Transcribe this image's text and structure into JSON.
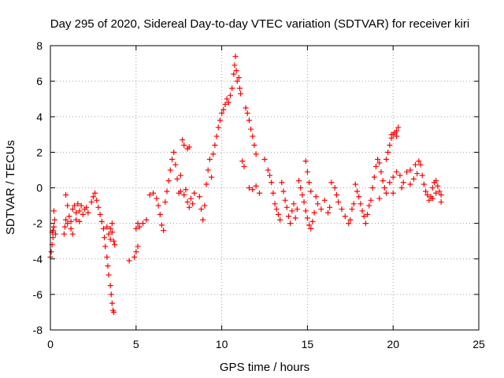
{
  "chart_data": {
    "type": "scatter",
    "title": "Day 295 of 2020, Sidereal Day-to-day VTEC variation (SDTVAR) for receiver kiri",
    "xlabel": "GPS time / hours",
    "ylabel": "SDTVAR / TECUs",
    "xlim": [
      0,
      25
    ],
    "ylim": [
      -8,
      8
    ],
    "xticks": [
      "0",
      "5",
      "10",
      "15",
      "20",
      "25"
    ],
    "yticks": [
      "-8",
      "-6",
      "-4",
      "-2",
      "0",
      "2",
      "4",
      "6",
      "8"
    ],
    "grid": true,
    "marker": "+",
    "color": "#ff0000",
    "series": [
      {
        "name": "SDTVAR",
        "points": [
          [
            0.0,
            -3.9
          ],
          [
            0.05,
            -3.6
          ],
          [
            0.1,
            -3.2
          ],
          [
            0.15,
            -2.8
          ],
          [
            0.1,
            -2.5
          ],
          [
            0.2,
            -2.2
          ],
          [
            0.25,
            -1.8
          ],
          [
            0.2,
            -1.3
          ],
          [
            0.3,
            -2.6
          ],
          [
            0.15,
            -2.4
          ],
          [
            0.8,
            -2.6
          ],
          [
            0.85,
            -2.2
          ],
          [
            0.9,
            -1.8
          ],
          [
            1.0,
            -2.0
          ],
          [
            1.1,
            -1.6
          ],
          [
            1.2,
            -1.9
          ],
          [
            1.3,
            -1.2
          ],
          [
            1.4,
            -1.0
          ],
          [
            1.5,
            -1.4
          ],
          [
            1.6,
            -0.9
          ],
          [
            1.7,
            -1.3
          ],
          [
            1.8,
            -1.0
          ],
          [
            1.9,
            -1.5
          ],
          [
            2.0,
            -1.2
          ],
          [
            2.1,
            -1.1
          ],
          [
            0.9,
            -0.4
          ],
          [
            1.0,
            -1.0
          ],
          [
            1.2,
            -2.3
          ],
          [
            1.3,
            -2.6
          ],
          [
            1.5,
            -1.8
          ],
          [
            1.7,
            -1.9
          ],
          [
            2.2,
            -1.4
          ],
          [
            2.4,
            -0.8
          ],
          [
            2.5,
            -0.5
          ],
          [
            2.6,
            -0.3
          ],
          [
            2.7,
            -0.7
          ],
          [
            2.8,
            -1.1
          ],
          [
            2.9,
            -1.5
          ],
          [
            3.0,
            -1.9
          ],
          [
            3.1,
            -2.3
          ],
          [
            3.15,
            -2.8
          ],
          [
            3.2,
            -3.3
          ],
          [
            3.3,
            -3.9
          ],
          [
            3.35,
            -4.4
          ],
          [
            3.4,
            -4.9
          ],
          [
            3.5,
            -5.5
          ],
          [
            3.55,
            -6.0
          ],
          [
            3.6,
            -6.5
          ],
          [
            3.65,
            -6.9
          ],
          [
            3.7,
            -7.0
          ],
          [
            3.3,
            -2.2
          ],
          [
            3.4,
            -2.6
          ],
          [
            3.5,
            -2.9
          ],
          [
            3.6,
            -2.5
          ],
          [
            3.7,
            -3.0
          ],
          [
            3.75,
            -3.2
          ],
          [
            3.6,
            -2.0
          ],
          [
            3.5,
            -2.3
          ],
          [
            4.6,
            -4.1
          ],
          [
            4.9,
            -3.9
          ],
          [
            5.0,
            -3.6
          ],
          [
            5.1,
            -3.3
          ],
          [
            5.0,
            -2.3
          ],
          [
            5.1,
            -2.0
          ],
          [
            5.2,
            -2.2
          ],
          [
            5.4,
            -2.0
          ],
          [
            5.6,
            -1.8
          ],
          [
            5.8,
            -0.4
          ],
          [
            6.0,
            -0.3
          ],
          [
            6.2,
            -0.6
          ],
          [
            6.3,
            -1.0
          ],
          [
            6.4,
            -1.5
          ],
          [
            6.5,
            -2.1
          ],
          [
            6.6,
            -2.4
          ],
          [
            6.7,
            -0.8
          ],
          [
            6.8,
            -0.2
          ],
          [
            6.9,
            0.4
          ],
          [
            7.0,
            1.0
          ],
          [
            7.1,
            1.6
          ],
          [
            7.2,
            2.0
          ],
          [
            7.3,
            1.3
          ],
          [
            7.4,
            0.5
          ],
          [
            7.5,
            -0.3
          ],
          [
            7.6,
            0.7
          ],
          [
            7.7,
            2.7
          ],
          [
            7.8,
            2.4
          ],
          [
            8.0,
            2.2
          ],
          [
            8.1,
            2.3
          ],
          [
            7.6,
            -0.2
          ],
          [
            7.8,
            -0.4
          ],
          [
            7.9,
            -0.1
          ],
          [
            8.0,
            -0.8
          ],
          [
            8.1,
            -1.1
          ],
          [
            8.2,
            -0.6
          ],
          [
            8.3,
            -0.9
          ],
          [
            8.4,
            -0.3
          ],
          [
            8.7,
            -0.5
          ],
          [
            8.8,
            -1.2
          ],
          [
            8.9,
            -1.8
          ],
          [
            9.0,
            -1.0
          ],
          [
            9.1,
            0.2
          ],
          [
            9.2,
            1.0
          ],
          [
            9.3,
            1.6
          ],
          [
            9.4,
            0.6
          ],
          [
            9.5,
            1.9
          ],
          [
            9.6,
            2.4
          ],
          [
            9.7,
            2.9
          ],
          [
            9.8,
            3.4
          ],
          [
            9.9,
            3.8
          ],
          [
            10.0,
            4.2
          ],
          [
            10.1,
            4.4
          ],
          [
            10.2,
            4.7
          ],
          [
            10.3,
            5.0
          ],
          [
            10.4,
            4.8
          ],
          [
            10.5,
            5.2
          ],
          [
            10.6,
            5.6
          ],
          [
            10.7,
            6.4
          ],
          [
            10.75,
            6.9
          ],
          [
            10.8,
            7.4
          ],
          [
            10.85,
            6.6
          ],
          [
            10.9,
            6.0
          ],
          [
            11.0,
            6.2
          ],
          [
            11.05,
            5.6
          ],
          [
            11.1,
            5.3
          ],
          [
            11.2,
            1.5
          ],
          [
            11.3,
            1.2
          ],
          [
            11.4,
            4.5
          ],
          [
            11.5,
            4.2
          ],
          [
            11.6,
            3.8
          ],
          [
            11.7,
            3.3
          ],
          [
            11.8,
            2.9
          ],
          [
            11.9,
            2.4
          ],
          [
            12.0,
            1.9
          ],
          [
            11.6,
            0.0
          ],
          [
            11.8,
            -0.1
          ],
          [
            12.0,
            0.1
          ],
          [
            12.2,
            -0.3
          ],
          [
            12.5,
            1.6
          ],
          [
            12.7,
            1.0
          ],
          [
            12.8,
            0.7
          ],
          [
            12.9,
            0.3
          ],
          [
            13.0,
            -0.3
          ],
          [
            13.1,
            -0.9
          ],
          [
            13.2,
            -1.2
          ],
          [
            13.3,
            -1.5
          ],
          [
            13.4,
            -1.8
          ],
          [
            13.5,
            0.3
          ],
          [
            13.6,
            -0.2
          ],
          [
            13.7,
            -0.7
          ],
          [
            13.8,
            -1.1
          ],
          [
            13.9,
            -1.6
          ],
          [
            14.0,
            -2.0
          ],
          [
            14.1,
            -1.3
          ],
          [
            14.2,
            -0.9
          ],
          [
            14.3,
            -1.7
          ],
          [
            14.4,
            -1.2
          ],
          [
            14.5,
            0.4
          ],
          [
            14.6,
            0.0
          ],
          [
            14.7,
            -0.4
          ],
          [
            14.8,
            -0.8
          ],
          [
            14.9,
            -1.3
          ],
          [
            15.0,
            -1.7
          ],
          [
            15.1,
            -2.1
          ],
          [
            15.2,
            -2.3
          ],
          [
            15.3,
            -1.9
          ],
          [
            15.4,
            -1.4
          ],
          [
            14.9,
            1.5
          ],
          [
            15.0,
            0.9
          ],
          [
            15.1,
            0.3
          ],
          [
            15.2,
            -0.2
          ],
          [
            15.5,
            -0.5
          ],
          [
            15.6,
            -0.9
          ],
          [
            15.8,
            -1.2
          ],
          [
            16.0,
            -0.7
          ],
          [
            16.2,
            -1.4
          ],
          [
            16.3,
            -1.1
          ],
          [
            16.4,
            0.3
          ],
          [
            16.6,
            0.0
          ],
          [
            16.7,
            -0.4
          ],
          [
            16.8,
            -0.8
          ],
          [
            17.0,
            -1.2
          ],
          [
            17.2,
            -1.6
          ],
          [
            17.4,
            -2.0
          ],
          [
            17.5,
            -1.8
          ],
          [
            17.6,
            -1.2
          ],
          [
            17.7,
            -0.9
          ],
          [
            17.8,
            0.2
          ],
          [
            17.9,
            -0.2
          ],
          [
            18.0,
            -0.5
          ],
          [
            18.1,
            -0.9
          ],
          [
            18.2,
            -1.3
          ],
          [
            18.3,
            -1.6
          ],
          [
            18.4,
            -2.0
          ],
          [
            18.5,
            -1.5
          ],
          [
            18.6,
            -1.0
          ],
          [
            18.7,
            -0.7
          ],
          [
            18.8,
            0.0
          ],
          [
            18.9,
            0.6
          ],
          [
            19.0,
            1.2
          ],
          [
            19.1,
            1.6
          ],
          [
            19.2,
            1.4
          ],
          [
            19.3,
            0.9
          ],
          [
            19.4,
            0.4
          ],
          [
            19.5,
            0.0
          ],
          [
            19.6,
            -0.3
          ],
          [
            19.2,
            -0.6
          ],
          [
            19.6,
            1.6
          ],
          [
            19.7,
            2.0
          ],
          [
            19.8,
            2.4
          ],
          [
            19.9,
            2.8
          ],
          [
            20.0,
            3.0
          ],
          [
            20.1,
            3.1
          ],
          [
            20.2,
            3.2
          ],
          [
            20.3,
            3.4
          ],
          [
            20.2,
            2.9
          ],
          [
            19.9,
            3.0
          ],
          [
            20.0,
            0.6
          ],
          [
            20.2,
            0.9
          ],
          [
            20.4,
            0.7
          ],
          [
            20.6,
            0.3
          ],
          [
            20.8,
            0.9
          ],
          [
            21.0,
            1.0
          ],
          [
            21.2,
            0.5
          ],
          [
            21.4,
            0.8
          ],
          [
            21.5,
            1.5
          ],
          [
            21.6,
            1.3
          ],
          [
            21.7,
            0.7
          ],
          [
            21.8,
            0.2
          ],
          [
            21.9,
            -0.2
          ],
          [
            22.0,
            -0.4
          ],
          [
            22.1,
            -0.7
          ],
          [
            22.2,
            -0.5
          ],
          [
            22.3,
            0.0
          ],
          [
            22.4,
            0.3
          ],
          [
            22.5,
            0.4
          ],
          [
            22.6,
            0.1
          ],
          [
            22.7,
            -0.2
          ],
          [
            22.8,
            -0.4
          ],
          [
            22.8,
            -0.8
          ],
          [
            22.5,
            -0.3
          ],
          [
            22.3,
            -0.6
          ],
          [
            21.0,
            0.2
          ],
          [
            20.5,
            0.0
          ],
          [
            20.0,
            -0.3
          ],
          [
            19.8,
            0.3
          ],
          [
            21.3,
            1.3
          ]
        ]
      }
    ]
  }
}
